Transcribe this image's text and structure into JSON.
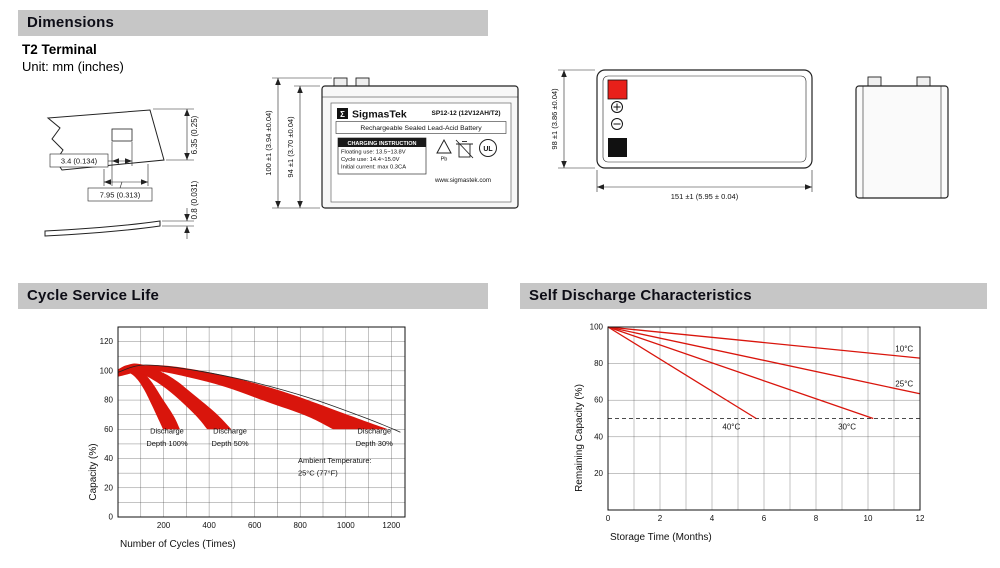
{
  "headers": {
    "dimensions": "Dimensions",
    "cycle_service_life": "Cycle Service Life",
    "self_discharge": "Self Discharge Characteristics"
  },
  "dimensions_section": {
    "terminal_type": "T2 Terminal",
    "unit_note": "Unit: mm (inches)",
    "terminal_dims": {
      "height": "6.35 (0.25)",
      "hole_width": "3.4 (0.134)",
      "tab_width": "7.95 (0.313)",
      "thickness": "0.8 (0.031)"
    },
    "front_view_dims": {
      "overall_height": "100 ±1 (3.94 ±0.04)",
      "case_height": "94 ±1 (3.70 ±0.04)"
    },
    "top_view_dims": {
      "width": "98 ±1 (3.86 ±0.04)",
      "length": "151 ±1 (5.95 ± 0.04)"
    },
    "battery_label": {
      "logo_glyph": "Σ",
      "brand": "SigmasTek",
      "model": "SP12-12 (12V12AH/T2)",
      "battery_type": "Rechargeable Sealed Lead-Acid Battery",
      "charging_title": "CHARGING INSTRUCTION",
      "charging_lines": [
        "Floating use: 13.5~13.8V",
        "Cycle use: 14.4~15.0V",
        "Initial current: max 0.3CA"
      ],
      "pb_label": "Pb",
      "ul_label": "UL",
      "website": "www.sigmastek.com"
    }
  },
  "colors": {
    "header_bar": "#c6c6c6",
    "chart_red": "#d9150c",
    "terminal_red": "#e8201a",
    "line_art": "#222222"
  },
  "chart_data": [
    {
      "type": "area",
      "title": "Cycle Service Life",
      "xlabel": "Number of Cycles (Times)",
      "ylabel": "Capacity (%)",
      "xlim": [
        0,
        1260
      ],
      "ylim": [
        0,
        130
      ],
      "xticks": [
        200,
        400,
        600,
        800,
        1000,
        1200
      ],
      "yticks": [
        0,
        20,
        40,
        60,
        80,
        100,
        120
      ],
      "x_grid_step": 100,
      "y_grid_step": 10,
      "grid": true,
      "legend_position": "none",
      "color": "#d9150c",
      "bands": [
        {
          "name": "Discharge Depth 100%",
          "upper": [
            [
              0,
              101
            ],
            [
              45,
              104
            ],
            [
              95,
              101
            ],
            [
              145,
              93
            ],
            [
              195,
              81
            ],
            [
              245,
              69
            ],
            [
              272,
              60
            ]
          ],
          "lower": [
            [
              0,
              96
            ],
            [
              40,
              99
            ],
            [
              80,
              95
            ],
            [
              115,
              87
            ],
            [
              150,
              76
            ],
            [
              180,
              66
            ],
            [
              198,
              60
            ]
          ]
        },
        {
          "name": "Discharge Depth 50%",
          "upper": [
            [
              0,
              101
            ],
            [
              70,
              105
            ],
            [
              150,
              102
            ],
            [
              240,
              95
            ],
            [
              330,
              84
            ],
            [
              430,
              71
            ],
            [
              498,
              60
            ]
          ],
          "lower": [
            [
              0,
              96
            ],
            [
              60,
              100
            ],
            [
              130,
              96
            ],
            [
              210,
              88
            ],
            [
              285,
              78
            ],
            [
              350,
              68
            ],
            [
              392,
              60
            ]
          ]
        },
        {
          "name": "Discharge Depth 30%",
          "upper": [
            [
              0,
              101
            ],
            [
              150,
              104
            ],
            [
              330,
              101
            ],
            [
              540,
              94
            ],
            [
              760,
              84
            ],
            [
              990,
              71
            ],
            [
              1185,
              60
            ]
          ],
          "lower": [
            [
              0,
              96
            ],
            [
              140,
              100
            ],
            [
              300,
              96
            ],
            [
              470,
              89
            ],
            [
              650,
              79
            ],
            [
              830,
              69
            ],
            [
              945,
              60
            ]
          ]
        }
      ],
      "envelope": [
        [
          0,
          99
        ],
        [
          120,
          104
        ],
        [
          350,
          100
        ],
        [
          600,
          92
        ],
        [
          850,
          81
        ],
        [
          1100,
          67
        ],
        [
          1240,
          58
        ]
      ],
      "annotations": [
        {
          "x": 215,
          "y": 57,
          "anchor": "middle",
          "text": "Discharge"
        },
        {
          "x": 215,
          "y": 48.5,
          "anchor": "middle",
          "text": "Depth 100%"
        },
        {
          "x": 492,
          "y": 57,
          "anchor": "middle",
          "text": "Discharge"
        },
        {
          "x": 492,
          "y": 48.5,
          "anchor": "middle",
          "text": "Depth 50%"
        },
        {
          "x": 1125,
          "y": 57,
          "anchor": "middle",
          "text": "Discharge"
        },
        {
          "x": 1125,
          "y": 48.5,
          "anchor": "middle",
          "text": "Depth 30%"
        },
        {
          "x": 790,
          "y": 37,
          "anchor": "start",
          "text": "Ambient Temperature:"
        },
        {
          "x": 790,
          "y": 28.5,
          "anchor": "start",
          "text": "25°C (77°F)"
        }
      ]
    },
    {
      "type": "line",
      "title": "Self Discharge Characteristics",
      "xlabel": "Storage Time (Months)",
      "ylabel": "Remaining Capacity (%)",
      "xlim": [
        0,
        12
      ],
      "ylim": [
        0,
        100
      ],
      "xticks": [
        0,
        2,
        4,
        6,
        8,
        10,
        12
      ],
      "yticks": [
        20,
        40,
        60,
        80,
        100
      ],
      "x_grid_step": 1,
      "y_grid_step": 20,
      "grid": true,
      "legend_position": "inline-labels",
      "color": "#d9150c",
      "threshold": {
        "y": 50,
        "style": "dashed"
      },
      "series": [
        {
          "name": "10°C",
          "points": [
            [
              0,
              100
            ],
            [
              12,
              83
            ]
          ],
          "label_at": [
            11.05,
            86.5
          ]
        },
        {
          "name": "25°C",
          "points": [
            [
              0,
              100
            ],
            [
              12,
              63.5
            ]
          ],
          "label_at": [
            11.05,
            67.5
          ]
        },
        {
          "name": "30°C",
          "points": [
            [
              0,
              100
            ],
            [
              10.2,
              50
            ]
          ],
          "label_at": [
            8.85,
            44
          ]
        },
        {
          "name": "40°C",
          "points": [
            [
              0,
              100
            ],
            [
              5.7,
              50
            ]
          ],
          "label_at": [
            4.4,
            44
          ]
        }
      ]
    }
  ]
}
